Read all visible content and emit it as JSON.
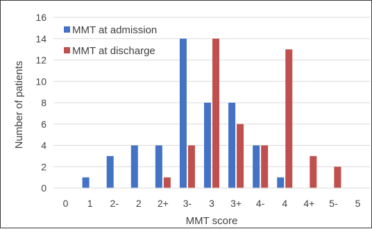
{
  "chart_data": {
    "type": "bar",
    "title": "",
    "xlabel": "MMT score",
    "ylabel": "Number of patients",
    "categories": [
      "0",
      "1",
      "2-",
      "2",
      "2+",
      "3-",
      "3",
      "3+",
      "4-",
      "4",
      "4+",
      "5-",
      "5"
    ],
    "ylim": [
      0,
      16
    ],
    "yticks": [
      0,
      2,
      4,
      6,
      8,
      10,
      12,
      14,
      16
    ],
    "grid": true,
    "legend_position": "top-left",
    "series": [
      {
        "name": "MMT at admission",
        "color": "#4472C4",
        "values": [
          0,
          1,
          3,
          4,
          4,
          14,
          8,
          8,
          4,
          1,
          0,
          0,
          0
        ]
      },
      {
        "name": "MMT at discharge",
        "color": "#C0504D",
        "values": [
          0,
          0,
          0,
          0,
          1,
          4,
          14,
          6,
          4,
          13,
          3,
          2,
          0
        ]
      }
    ]
  }
}
